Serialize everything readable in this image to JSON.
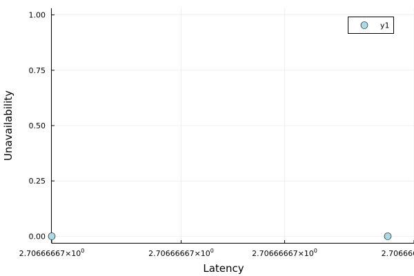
{
  "chart_data": {
    "type": "scatter",
    "xlabel": "Latency",
    "ylabel": "Unavailability",
    "ylim": [
      -0.03,
      1.03
    ],
    "grid": true,
    "legend_position": "top-right",
    "x_tick_mantissa": "2.70666667",
    "x_tick_base": "×10",
    "x_tick_exponent": "0",
    "y_ticks": [
      0.0,
      0.25,
      0.5,
      0.75,
      1.0
    ],
    "y_tick_labels": [
      "0.00",
      "0.25",
      "0.50",
      "0.75",
      "1.00"
    ],
    "series": [
      {
        "name": "y1",
        "color": "#add8e6",
        "points": [
          {
            "x": 2.70666667,
            "y": 0.0
          },
          {
            "x": 2.70666667,
            "y": 0.0
          }
        ]
      }
    ]
  }
}
